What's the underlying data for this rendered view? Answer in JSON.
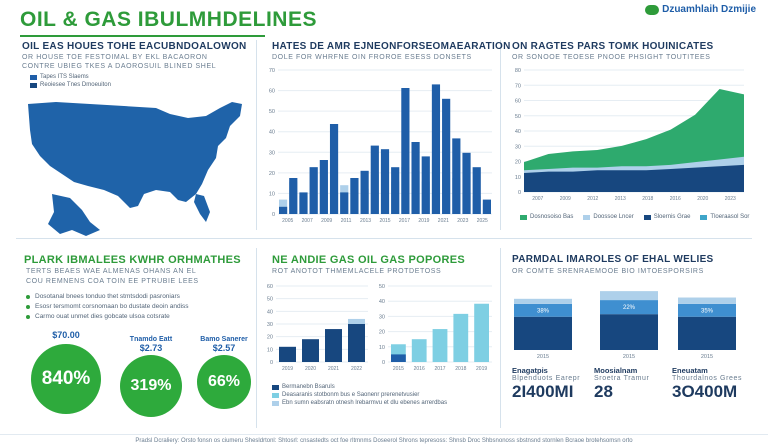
{
  "header": {
    "title": "OIL & GAS IBULMHDELINES",
    "brand": "Dzuamhlaih Dzmijie"
  },
  "panels": {
    "map": {
      "title": "OIL EAS HOUES TOHE EACUBNDOALOWON",
      "sub1": "OR HOUSE TOE FESTOIMAL BY EKL BACAORON",
      "sub2": "CONTRE UBIEG TKES A DAOROSUIL BLINED SHEL"
    },
    "bar_main": {
      "title": "HATES DE AMR EJNEONFORSEOMAEARATION",
      "sub": "DOLE FOR WHRFNE OIN FROROE ESESS DONSETS"
    },
    "area": {
      "title": "ON RAGTES PARS TOMK HOUINICATES",
      "sub": "OR SONOOE TEOESE PNOOE PHSIGHT TOUTITEES"
    },
    "plant": {
      "title": "PLARK IBMALEES KWHR ORHMATHES",
      "sub1": "TERTS BEAES WAE ALMENAS OHANS AN EL",
      "sub2": "COU REMNENS COA TOIN EE PTRUBIE LEES"
    },
    "gas": {
      "title": "NE ANDIE GAS OIL GAS POPORES",
      "sub": "ROT ANOTOT THMEMLACELE PROTDETOSS"
    },
    "marol": {
      "title": "PARMDAL IMAROLES OF EHAL WELIES",
      "sub": "OR COMTE SRENRAEMOOE BIO IMTOESPORSIRS"
    }
  },
  "map_legend": [
    "Tapes ITS Slaems",
    "Reoiesee Tnes Dmoeuiton"
  ],
  "bullets": [
    "Dosotanal bnees tonduo thet stmtsdodi pasroniars",
    "Esosr tersmomt corsnomaan bo dustate deoin andiss",
    "Carmo ouat unmet dies gobcate ulsoa cotsrate"
  ],
  "circles": [
    {
      "caption": "$70.00",
      "value": "840%"
    },
    {
      "caption": "$2.73",
      "value": "319%"
    },
    {
      "caption": "$2.57",
      "value": "66%"
    }
  ],
  "circle_labels": [
    "Tnamdo Eatt",
    "Bamo Sanerer"
  ],
  "gas_legend": [
    "Bermanebn Bsaruls",
    "Deasaranis stotbonm bus e Saonenr prerenetvusier",
    "Ebn sumn eabsratn otnesh lrebarmvu et dlu ebenes arrerdbas"
  ],
  "stats": [
    {
      "caption": "Enagatpis",
      "sub": "Blpenduots Earepr",
      "value": "2I400MI"
    },
    {
      "caption": "Moosialnam",
      "sub": "Sroetra Tramur",
      "value": "28"
    },
    {
      "caption": "Eneuatam",
      "sub": "Thourdalnos Grees",
      "value": "3O400M"
    }
  ],
  "footer": "Pradsl Dcraliery: Orsto fonsn os ciumeru Shesldrtonl: Shtosrl: cnsastedts oct foe rltmnms Doseerol Shrons tepresoss: Shnsb Droc Shbsnonoss sbstnsnd stornlen Bcraoe brotehsomsn orto",
  "chart_data": [
    {
      "type": "bar",
      "title": "HATES DE AMR EJNEONFORSEOMAEARATION",
      "ylim": [
        0,
        80
      ],
      "yticks": [
        "70",
        "60",
        "50",
        "40",
        "30",
        "20",
        "10",
        "0"
      ],
      "xticks": [
        "2005",
        "2007",
        "2009",
        "2011",
        "2013",
        "2015",
        "2017",
        "2019",
        "2021",
        "2023",
        "2025"
      ],
      "series": [
        {
          "color": "#aed0ea",
          "values": [
            8,
            18,
            10,
            26,
            19,
            12,
            16,
            20,
            14,
            22,
            30,
            18,
            26,
            24,
            18,
            30,
            22,
            20,
            12,
            10,
            6
          ]
        },
        {
          "color": "#1f5ea8",
          "values": [
            4,
            20,
            12,
            26,
            30,
            50,
            12,
            20,
            24,
            38,
            36,
            26,
            70,
            40,
            32,
            72,
            64,
            42,
            34,
            26,
            8
          ]
        }
      ]
    },
    {
      "type": "area",
      "title": "ON RAGTES PARS TOMK HOUINICATES",
      "ylim": [
        0,
        90
      ],
      "yticks": [
        "80",
        "70",
        "60",
        "50",
        "40",
        "30",
        "20",
        "10",
        "0"
      ],
      "xticks": [
        "2007",
        "2009",
        "2012",
        "2013",
        "2018",
        "2016",
        "2020",
        "2023"
      ],
      "series": [
        {
          "name": "Dosnosoiso Bas",
          "color": "#2eaa6e",
          "values": [
            22,
            28,
            30,
            31,
            34,
            39,
            46,
            57,
            76,
            72
          ]
        },
        {
          "name": "Doossoe Lncer",
          "color": "#aed0ea",
          "values": [
            16,
            17,
            18,
            18,
            19,
            19,
            20,
            22,
            24,
            26
          ]
        },
        {
          "name": "Sloernis Grae",
          "color": "#17477f",
          "values": [
            14,
            15,
            15,
            16,
            16,
            16,
            17,
            18,
            19,
            20
          ]
        },
        {
          "name": "Tloeraasol Sor",
          "color": "#3fa5c9",
          "values": [
            0,
            0,
            0,
            0,
            0,
            0,
            0,
            0,
            0,
            0
          ]
        }
      ]
    },
    {
      "type": "bar",
      "title": "NE ANDIE GAS OIL GAS POPORES",
      "ylim": [
        0,
        60
      ],
      "yticks": [
        "60",
        "50",
        "40",
        "30",
        "20",
        "10",
        "0"
      ],
      "xticks": [
        "2019",
        "2020",
        "2021",
        "2022"
      ],
      "series": [
        {
          "color": "#aed0ea",
          "values": [
            10,
            14,
            22,
            34
          ]
        },
        {
          "color": "#17477f",
          "values": [
            12,
            18,
            26,
            30
          ]
        }
      ]
    },
    {
      "type": "bar",
      "title": "",
      "ylim": [
        0,
        60
      ],
      "yticks": [
        "50",
        "40",
        "30",
        "20",
        "10",
        "0"
      ],
      "xticks": [
        "2015",
        "2016",
        "2017",
        "2018",
        "2019"
      ],
      "series": [
        {
          "color": "#7ecfe3",
          "values": [
            14,
            18,
            26,
            38,
            46
          ]
        },
        {
          "color": "#1f5ea8",
          "values": [
            6,
            0,
            0,
            0,
            0
          ]
        }
      ]
    },
    {
      "type": "bar",
      "title": "PARMDAL IMAROLES OF EHAL WELIES",
      "categories": [
        "2015",
        "2015",
        "2015"
      ],
      "ylim": [
        0,
        100
      ],
      "series": [
        {
          "name": "base",
          "color": "#17477f",
          "values": [
            52,
            56,
            52
          ]
        },
        {
          "name": "mid",
          "color": "#3f8fd0",
          "values": [
            20,
            22,
            20
          ]
        },
        {
          "name": "top",
          "color": "#aed0ea",
          "values": [
            8,
            14,
            10
          ]
        }
      ],
      "labels": [
        "38%",
        "22%",
        "35%"
      ]
    }
  ]
}
